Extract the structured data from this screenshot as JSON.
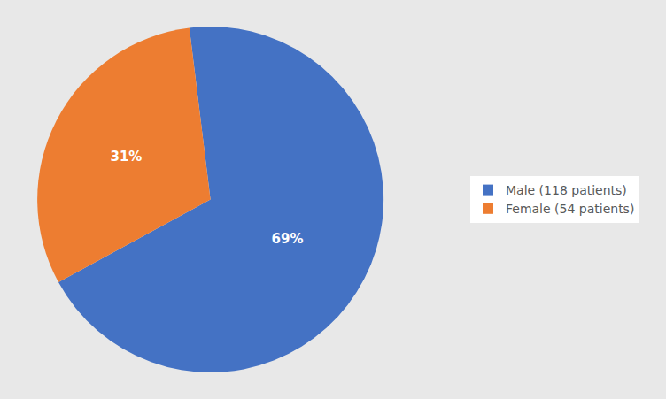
{
  "chart_data": {
    "type": "pie",
    "categories": [
      "Male (118 patients)",
      "Female (54 patients)"
    ],
    "values": [
      69,
      31
    ],
    "value_labels": [
      "69%",
      "31%"
    ],
    "colors": [
      "#4472C4",
      "#ED7D31"
    ],
    "data_labels": true,
    "legend": "right"
  }
}
